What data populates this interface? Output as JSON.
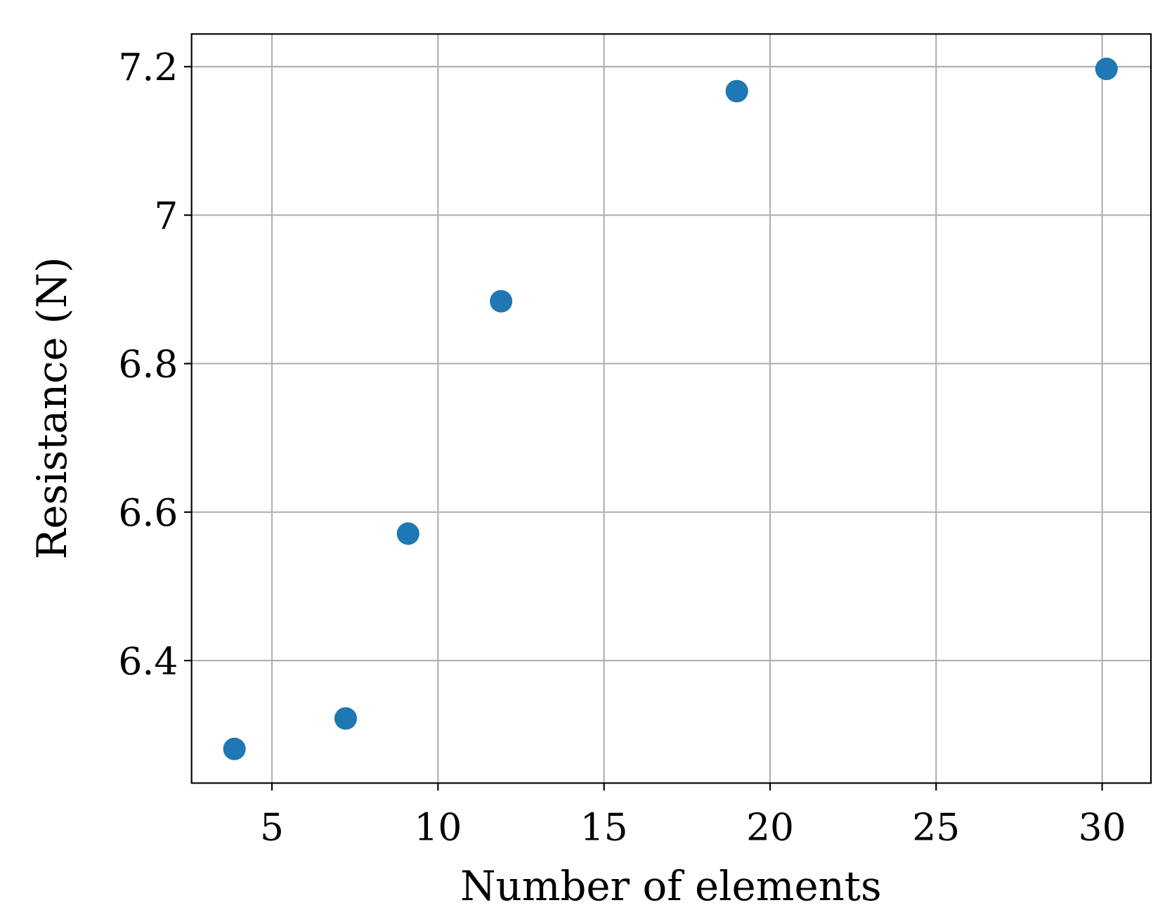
{
  "chart_data": {
    "type": "scatter",
    "x_label": "Number of elements",
    "y_label": "Resistance (N)",
    "x": [
      3.87,
      7.22,
      9.1,
      11.9,
      19.0,
      30.13
    ],
    "values": [
      6.281,
      6.322,
      6.571,
      6.884,
      7.167,
      7.197
    ],
    "color": "#1f77b4",
    "xlim": [
      2.58,
      31.47
    ],
    "xticks": [
      5,
      10,
      15,
      20,
      25,
      30
    ],
    "ylim": [
      6.235,
      7.244
    ],
    "yticks": [
      6.4,
      6.6,
      6.8,
      7.0,
      7.2
    ],
    "grid": true
  }
}
